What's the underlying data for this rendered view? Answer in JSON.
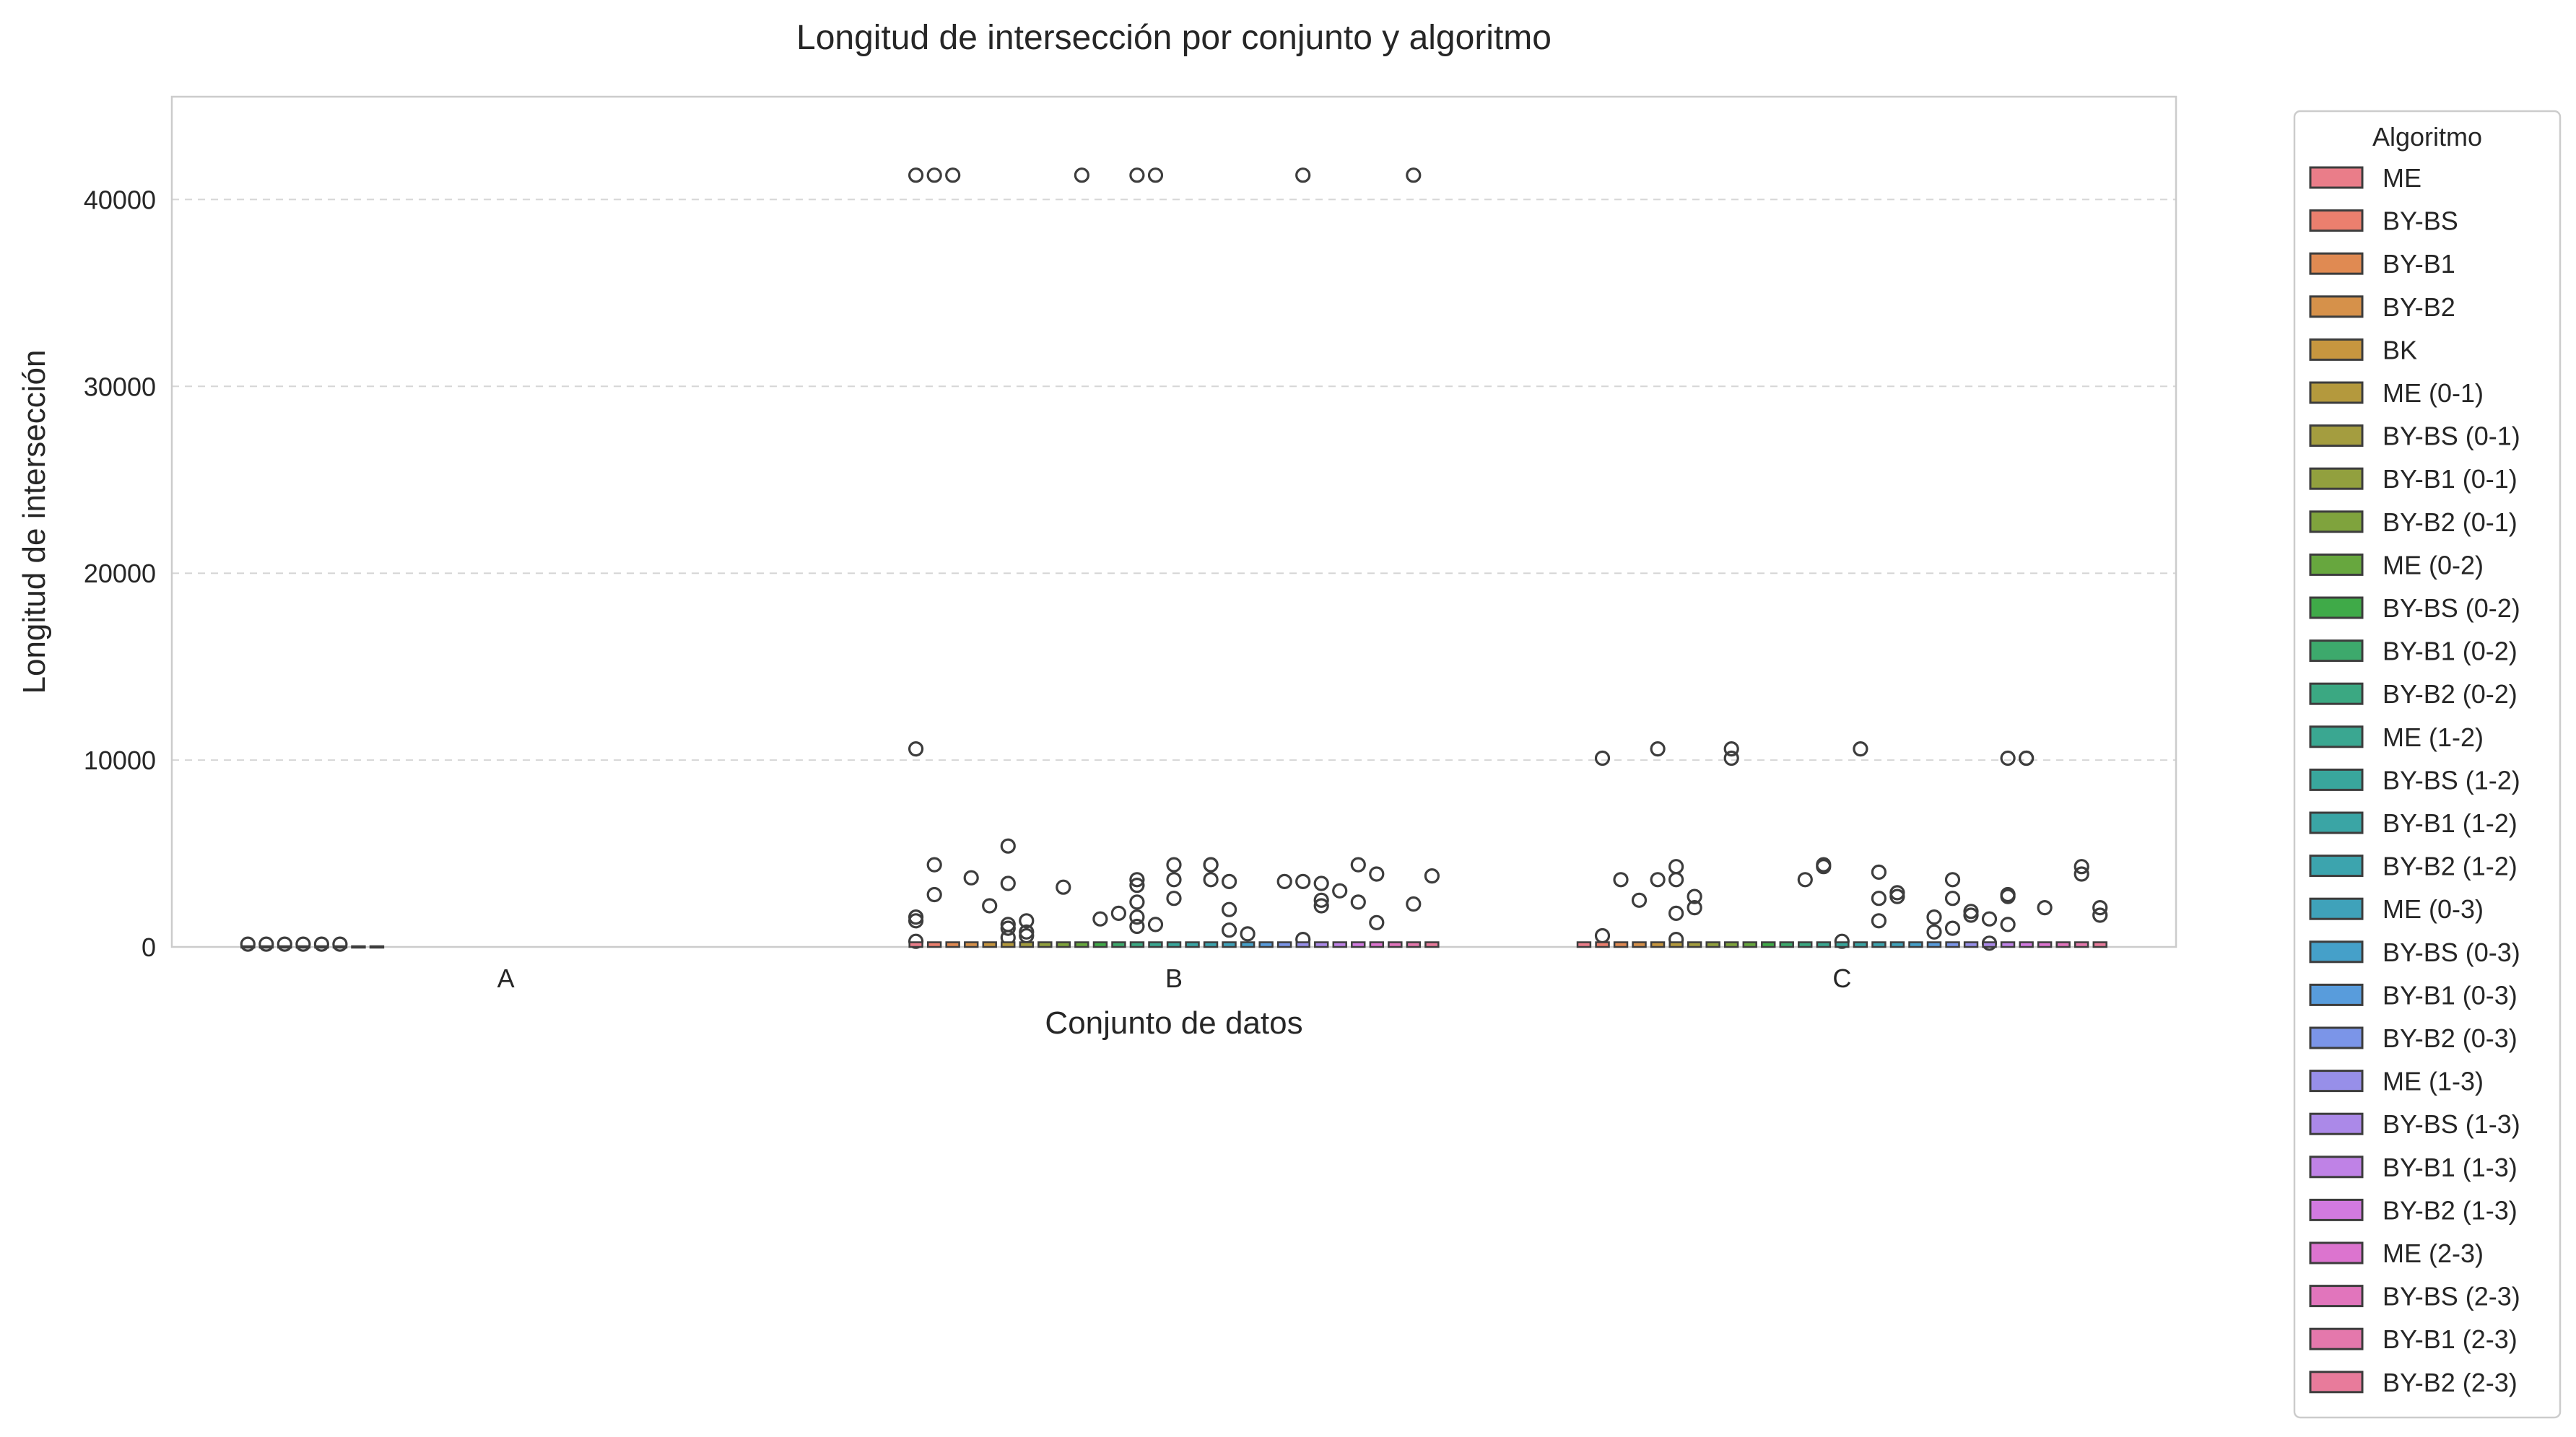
{
  "chart_data": {
    "type": "box",
    "title": "Longitud de intersección por conjunto y algoritmo",
    "xlabel": "Conjunto de datos",
    "ylabel": "Longitud de intersección",
    "categories": [
      "A",
      "B",
      "C"
    ],
    "y_ticks": [
      0,
      10000,
      20000,
      30000,
      40000
    ],
    "y_tick_labels": [
      "0",
      "10000",
      "20000",
      "30000",
      "40000"
    ],
    "ylim": [
      0,
      45500
    ],
    "grid": "horizontal-dashed",
    "legend": {
      "title": "Algoritmo",
      "placement": "outside-right",
      "entries": [
        {
          "name": "ME",
          "color": "#ea7d89"
        },
        {
          "name": "BY-BS",
          "color": "#eb7f6e"
        },
        {
          "name": "BY-B1",
          "color": "#e08a52"
        },
        {
          "name": "BY-B2",
          "color": "#d6914a"
        },
        {
          "name": "BK",
          "color": "#c7963f"
        },
        {
          "name": "ME (0-1)",
          "color": "#b4993d"
        },
        {
          "name": "BY-BS (0-1)",
          "color": "#a49d3f"
        },
        {
          "name": "BY-B1 (0-1)",
          "color": "#92a03e"
        },
        {
          "name": "BY-B2 (0-1)",
          "color": "#7fa33d"
        },
        {
          "name": "ME (0-2)",
          "color": "#67a73e"
        },
        {
          "name": "BY-BS (0-2)",
          "color": "#3faa48"
        },
        {
          "name": "BY-B1 (0-2)",
          "color": "#3da96c"
        },
        {
          "name": "BY-B2 (0-2)",
          "color": "#3ba882"
        },
        {
          "name": "ME (1-2)",
          "color": "#3aa791"
        },
        {
          "name": "BY-BS (1-2)",
          "color": "#39a69c"
        },
        {
          "name": "BY-B1 (1-2)",
          "color": "#3aa5a5"
        },
        {
          "name": "BY-B2 (1-2)",
          "color": "#3ca4ae"
        },
        {
          "name": "ME (0-3)",
          "color": "#3fa2ba"
        },
        {
          "name": "BY-BS (0-3)",
          "color": "#45a0c9"
        },
        {
          "name": "BY-B1 (0-3)",
          "color": "#589cdc"
        },
        {
          "name": "BY-B2 (0-3)",
          "color": "#7b95e8"
        },
        {
          "name": "ME (1-3)",
          "color": "#978fe9"
        },
        {
          "name": "BY-BS (1-3)",
          "color": "#ab89e8"
        },
        {
          "name": "BY-B1 (1-3)",
          "color": "#bf82e6"
        },
        {
          "name": "BY-B2 (1-3)",
          "color": "#d27ae0"
        },
        {
          "name": "ME (2-3)",
          "color": "#dc74cf"
        },
        {
          "name": "BY-BS (2-3)",
          "color": "#e175bc"
        },
        {
          "name": "BY-B1 (2-3)",
          "color": "#e478ac"
        },
        {
          "name": "BY-B2 (2-3)",
          "color": "#e87b9b"
        }
      ]
    },
    "outliers": [
      {
        "category": "A",
        "values": [
          150,
          150,
          150,
          150,
          150,
          150
        ]
      },
      {
        "category": "B",
        "values": [
          41300,
          41300,
          41300,
          41300,
          41300,
          41300,
          41300,
          41300,
          10600,
          5400,
          3900,
          3800,
          3700,
          3600,
          3500,
          3400,
          3300,
          3200,
          3000,
          2800,
          2600,
          2400,
          2200,
          2000,
          1800,
          1600,
          1400,
          1200,
          1000,
          800,
          600,
          400,
          4400,
          4400,
          4400,
          4400,
          4400,
          3600,
          3600,
          3500,
          3500,
          3400,
          2500,
          2400,
          2300,
          2200,
          1600,
          1500,
          1400,
          1300,
          1200,
          1100,
          900,
          700,
          500,
          300
        ]
      },
      {
        "category": "C",
        "values": [
          10600,
          10600,
          10100,
          10100,
          10100,
          10600,
          10100,
          10100,
          4300,
          4300,
          4400,
          4300,
          4000,
          3900,
          3600,
          3600,
          3600,
          3600,
          3600,
          2900,
          2800,
          2700,
          2700,
          2700,
          2600,
          2600,
          2500,
          2100,
          2100,
          2100,
          1900,
          1800,
          1700,
          1700,
          1600,
          1500,
          1400,
          1200,
          1000,
          800,
          600,
          400,
          300,
          200
        ]
      }
    ]
  }
}
